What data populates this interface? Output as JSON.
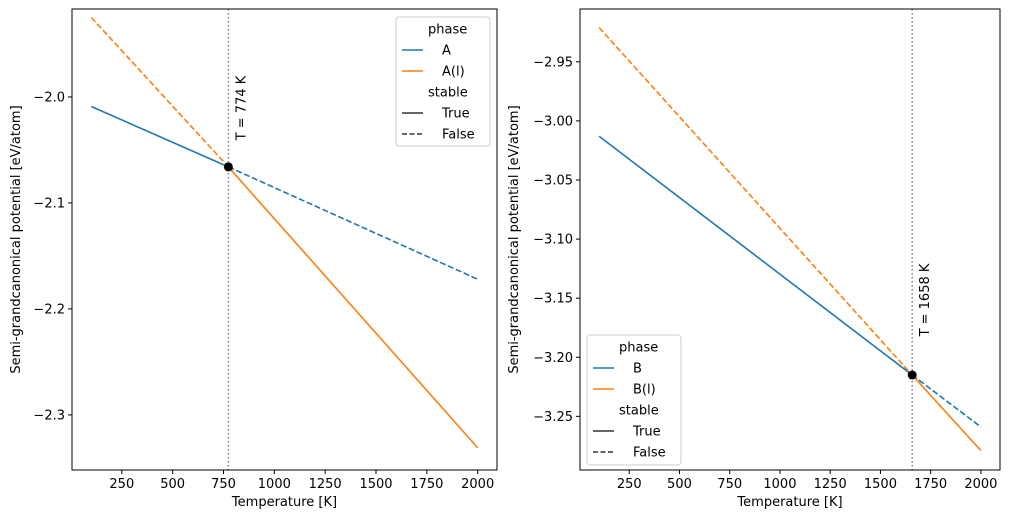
{
  "chart_data": [
    {
      "type": "line",
      "xlabel": "Temperature [K]",
      "ylabel": "Semi-grandcanonical potential [eV/atom]",
      "xlim": [
        5,
        2095
      ],
      "ylim": [
        -2.352,
        -1.917
      ],
      "xticks": [
        250,
        500,
        750,
        1000,
        1250,
        1500,
        1750,
        2000
      ],
      "xtick_labels": [
        "250",
        "500",
        "750",
        "1000",
        "1250",
        "1500",
        "1750",
        "2000"
      ],
      "yticks": [
        -2.0,
        -2.1,
        -2.2,
        -2.3
      ],
      "ytick_labels": [
        "−2.0",
        "−2.1",
        "−2.2",
        "−2.3"
      ],
      "series": [
        {
          "name": "A",
          "color": "#1f77b4",
          "segments": [
            {
              "stable": true,
              "x": [
                100,
                774
              ],
              "y": [
                -2.009,
                -2.066
              ]
            },
            {
              "stable": false,
              "x": [
                774,
                2000
              ],
              "y": [
                -2.066,
                -2.172
              ]
            }
          ]
        },
        {
          "name": "A(l)",
          "color": "#ff7f0e",
          "segments": [
            {
              "stable": false,
              "x": [
                100,
                774
              ],
              "y": [
                -1.925,
                -2.066
              ]
            },
            {
              "stable": true,
              "x": [
                774,
                2000
              ],
              "y": [
                -2.066,
                -2.331
              ]
            }
          ]
        }
      ],
      "transition": {
        "x": 774,
        "y": -2.066,
        "label": "T = 774 K"
      },
      "legend": {
        "placement": "upper right",
        "entries": [
          {
            "kind": "header",
            "label": "phase"
          },
          {
            "kind": "line",
            "label": "A",
            "color": "#1f77b4",
            "dash": "solid"
          },
          {
            "kind": "line",
            "label": "A(l)",
            "color": "#ff7f0e",
            "dash": "solid"
          },
          {
            "kind": "header",
            "label": "stable"
          },
          {
            "kind": "line",
            "label": "True",
            "color": "#333333",
            "dash": "solid"
          },
          {
            "kind": "line",
            "label": "False",
            "color": "#333333",
            "dash": "dashed"
          }
        ]
      }
    },
    {
      "type": "line",
      "xlabel": "Temperature [K]",
      "ylabel": "Semi-grandcanonical potential [eV/atom]",
      "xlim": [
        5,
        2095
      ],
      "ylim": [
        -3.2954,
        -2.9053
      ],
      "xticks": [
        250,
        500,
        750,
        1000,
        1250,
        1500,
        1750,
        2000
      ],
      "xtick_labels": [
        "250",
        "500",
        "750",
        "1000",
        "1250",
        "1500",
        "1750",
        "2000"
      ],
      "yticks": [
        -2.95,
        -3.0,
        -3.05,
        -3.1,
        -3.15,
        -3.2,
        -3.25
      ],
      "ytick_labels": [
        "−2.95",
        "−3.00",
        "−3.05",
        "−3.10",
        "−3.15",
        "−3.20",
        "−3.25"
      ],
      "series": [
        {
          "name": "B",
          "color": "#1f77b4",
          "segments": [
            {
              "stable": true,
              "x": [
                100,
                1658
              ],
              "y": [
                -3.013,
                -3.215
              ]
            },
            {
              "stable": false,
              "x": [
                1658,
                2000
              ],
              "y": [
                -3.215,
                -3.259
              ]
            }
          ]
        },
        {
          "name": "B(l)",
          "color": "#ff7f0e",
          "segments": [
            {
              "stable": false,
              "x": [
                100,
                1658
              ],
              "y": [
                -2.921,
                -3.215
              ]
            },
            {
              "stable": true,
              "x": [
                1658,
                2000
              ],
              "y": [
                -3.215,
                -3.279
              ]
            }
          ]
        }
      ],
      "transition": {
        "x": 1658,
        "y": -3.215,
        "label": "T = 1658 K"
      },
      "legend": {
        "placement": "lower left",
        "entries": [
          {
            "kind": "header",
            "label": "phase"
          },
          {
            "kind": "line",
            "label": "B",
            "color": "#1f77b4",
            "dash": "solid"
          },
          {
            "kind": "line",
            "label": "B(l)",
            "color": "#ff7f0e",
            "dash": "solid"
          },
          {
            "kind": "header",
            "label": "stable"
          },
          {
            "kind": "line",
            "label": "True",
            "color": "#333333",
            "dash": "solid"
          },
          {
            "kind": "line",
            "label": "False",
            "color": "#333333",
            "dash": "dashed"
          }
        ]
      }
    }
  ]
}
